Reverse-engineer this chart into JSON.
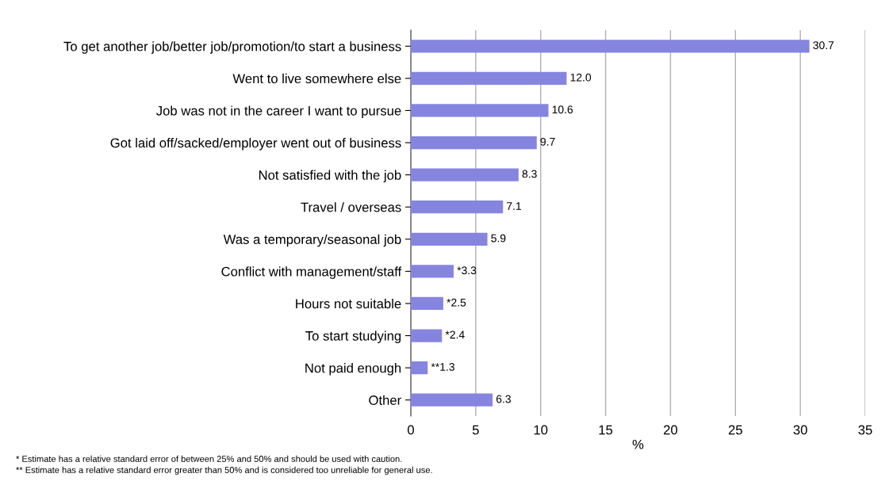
{
  "chart_data": {
    "type": "bar",
    "orientation": "horizontal",
    "xlabel": "%",
    "categories": [
      "To get another job/better job/promotion/to start a business",
      "Went to live somewhere else",
      "Job was not in the career I want to pursue",
      "Got laid off/sacked/employer went out of business",
      "Not satisfied with the job",
      "Travel / overseas",
      "Was a temporary/seasonal job",
      "Conflict with management/staff",
      "Hours not suitable",
      "To start studying",
      "Not paid enough",
      "Other"
    ],
    "values": [
      30.7,
      12.0,
      10.6,
      9.7,
      8.3,
      7.1,
      5.9,
      3.3,
      2.5,
      2.4,
      1.3,
      6.3
    ],
    "value_labels": [
      "30.7",
      "12.0",
      "10.6",
      "9.7",
      "8.3",
      "7.1",
      "5.9",
      "*3.3",
      "*2.5",
      "*2.4",
      "**1.3",
      "6.3"
    ],
    "color": "#8585e0",
    "xlim": [
      0,
      35
    ],
    "xticks": [
      0,
      5,
      10,
      15,
      20,
      25,
      30,
      35
    ],
    "grid": "x",
    "annotations": [
      "* Estimate has a relative standard error of between 25% and 50% and should be used with caution.",
      "** Estimate has a relative standard error greater than 50% and is considered too unreliable for general use."
    ]
  }
}
